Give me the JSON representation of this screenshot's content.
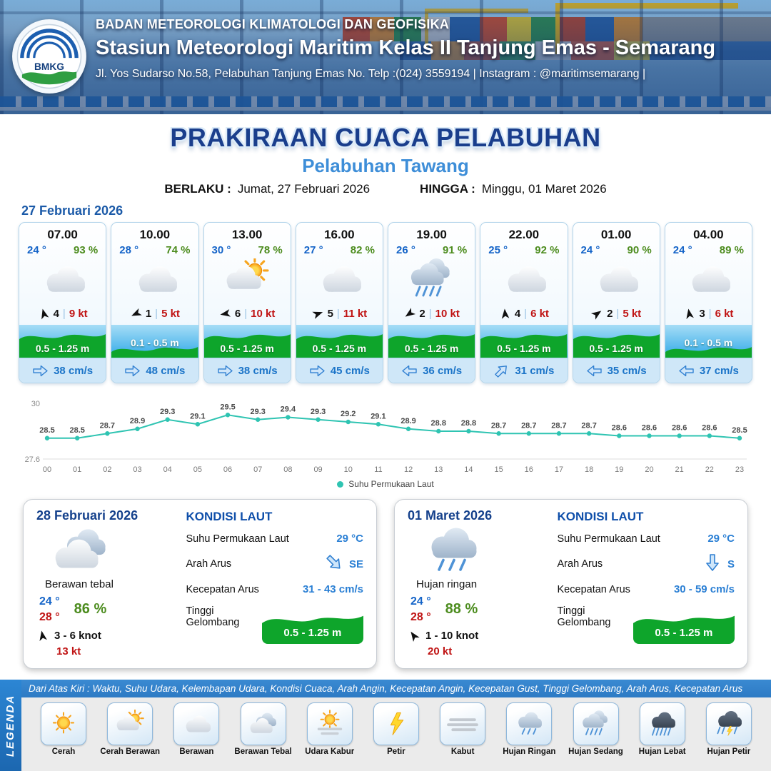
{
  "ui": {
    "divider": "|"
  },
  "header": {
    "logo_text": "BMKG",
    "org": "BADAN METEOROLOGI KLIMATOLOGI DAN GEOFISIKA",
    "station": "Stasiun Meteorologi Maritim Kelas II Tanjung Emas - Semarang",
    "address": "Jl. Yos Sudarso No.58, Pelabuhan Tanjung Emas No. Telp :(024) 3559194 | Instagram : @maritimsemarang |"
  },
  "title": {
    "main": "PRAKIRAAN CUACA PELABUHAN",
    "sub": "Pelabuhan Tawang",
    "valid_label": "BERLAKU :",
    "valid_value": "Jumat, 27 Februari 2026",
    "until_label": "HINGGA :",
    "until_value": "Minggu, 01 Maret 2026",
    "date_label": "27 Februari 2026"
  },
  "forecast_cards": [
    {
      "time": "07.00",
      "temp": "24 °",
      "rh": "93 %",
      "icon": "berawan",
      "wind_deg": -15,
      "wind_force": "4",
      "wind_speed": "9 kt",
      "wave": "0.5 - 1.25 m",
      "wave_level": "high",
      "cur_deg": 0,
      "current": "38 cm/s"
    },
    {
      "time": "10.00",
      "temp": "28 °",
      "rh": "74 %",
      "icon": "berawan",
      "wind_deg": -115,
      "wind_force": "1",
      "wind_speed": "5 kt",
      "wave": "0.1 - 0.5 m",
      "wave_level": "low",
      "cur_deg": 0,
      "current": "48 cm/s"
    },
    {
      "time": "13.00",
      "temp": "30 °",
      "rh": "78 %",
      "icon": "cerah-berawan",
      "wind_deg": -100,
      "wind_force": "6",
      "wind_speed": "10 kt",
      "wave": "0.5 - 1.25 m",
      "wave_level": "high",
      "cur_deg": 0,
      "current": "38 cm/s"
    },
    {
      "time": "16.00",
      "temp": "27 °",
      "rh": "82 %",
      "icon": "berawan",
      "wind_deg": 70,
      "wind_force": "5",
      "wind_speed": "11 kt",
      "wave": "0.5 - 1.25 m",
      "wave_level": "high",
      "cur_deg": 0,
      "current": "45 cm/s"
    },
    {
      "time": "19.00",
      "temp": "26 °",
      "rh": "91 %",
      "icon": "hujan-sedang",
      "wind_deg": -125,
      "wind_force": "2",
      "wind_speed": "10 kt",
      "wave": "0.5 - 1.25 m",
      "wave_level": "high",
      "cur_deg": 180,
      "current": "36 cm/s"
    },
    {
      "time": "22.00",
      "temp": "25 °",
      "rh": "92 %",
      "icon": "berawan",
      "wind_deg": -5,
      "wind_force": "4",
      "wind_speed": "6 kt",
      "wave": "0.5 - 1.25 m",
      "wave_level": "high",
      "cur_deg": -45,
      "current": "31 cm/s"
    },
    {
      "time": "01.00",
      "temp": "24 °",
      "rh": "90 %",
      "icon": "berawan",
      "wind_deg": 55,
      "wind_force": "2",
      "wind_speed": "5 kt",
      "wave": "0.5 - 1.25 m",
      "wave_level": "high",
      "cur_deg": 180,
      "current": "35 cm/s"
    },
    {
      "time": "04.00",
      "temp": "24 °",
      "rh": "89 %",
      "icon": "berawan",
      "wind_deg": -10,
      "wind_force": "3",
      "wind_speed": "6 kt",
      "wave": "0.1 - 0.5 m",
      "wave_level": "low",
      "cur_deg": 180,
      "current": "37 cm/s"
    }
  ],
  "chart_data": {
    "type": "line",
    "series_label": "Suhu Permukaan Laut",
    "x": [
      "00",
      "01",
      "02",
      "03",
      "04",
      "05",
      "06",
      "07",
      "08",
      "09",
      "10",
      "11",
      "12",
      "13",
      "14",
      "15",
      "16",
      "17",
      "18",
      "19",
      "20",
      "21",
      "22",
      "23"
    ],
    "values": [
      28.5,
      28.5,
      28.7,
      28.9,
      29.3,
      29.1,
      29.5,
      29.3,
      29.4,
      29.3,
      29.2,
      29.1,
      28.9,
      28.8,
      28.8,
      28.7,
      28.7,
      28.7,
      28.7,
      28.6,
      28.6,
      28.6,
      28.6,
      28.5
    ],
    "ylim": [
      27.6,
      30
    ],
    "line_color": "#2fc4b2",
    "legend_position": "bottom",
    "grid": false
  },
  "outlook": [
    {
      "date": "28 Februari 2026",
      "icon": "berawan-tebal",
      "condition": "Berawan tebal",
      "temp_min": "24 °",
      "temp_max": "28 °",
      "rh": "86 %",
      "wind_deg": -10,
      "wind_range": "3  - 6 knot",
      "gust": "13 kt",
      "sea_title": "KONDISI LAUT",
      "sst_label": "Suhu Permukaan Laut",
      "sst": "29 °C",
      "dir_label": "Arah Arus",
      "dir": "SE",
      "dir_deg": 45,
      "speed_label": "Kecepatan Arus",
      "speed": "31 - 43 cm/s",
      "wave_label": "Tinggi Gelombang",
      "wave": "0.5 - 1.25 m"
    },
    {
      "date": "01 Maret 2026",
      "icon": "hujan-ringan",
      "condition": "Hujan ringan",
      "temp_min": "24 °",
      "temp_max": "28 °",
      "rh": "88 %",
      "wind_deg": -35,
      "wind_range": "1  - 10 knot",
      "gust": "20 kt",
      "sea_title": "KONDISI LAUT",
      "sst_label": "Suhu Permukaan Laut",
      "sst": "29 °C",
      "dir_label": "Arah Arus",
      "dir": "S",
      "dir_deg": 90,
      "speed_label": "Kecepatan Arus",
      "speed": "30 - 59 cm/s",
      "wave_label": "Tinggi Gelombang",
      "wave": "0.5 - 1.25 m"
    }
  ],
  "legend": {
    "title": "LEGENDA",
    "description": "Dari Atas Kiri : Waktu, Suhu Udara, Kelembapan Udara, Kondisi Cuaca, Arah Angin, Kecepatan Angin, Kecepatan Gust, Tinggi Gelombang, Arah Arus, Kecepatan Arus",
    "items": [
      {
        "icon": "cerah",
        "label": "Cerah"
      },
      {
        "icon": "cerah-berawan",
        "label": "Cerah Berawan"
      },
      {
        "icon": "berawan",
        "label": "Berawan"
      },
      {
        "icon": "berawan-tebal",
        "label": "Berawan Tebal"
      },
      {
        "icon": "udara-kabur",
        "label": "Udara Kabur"
      },
      {
        "icon": "petir",
        "label": "Petir"
      },
      {
        "icon": "kabut",
        "label": "Kabut"
      },
      {
        "icon": "hujan-ringan",
        "label": "Hujan Ringan"
      },
      {
        "icon": "hujan-sedang",
        "label": "Hujan Sedang"
      },
      {
        "icon": "hujan-lebat",
        "label": "Hujan Lebat"
      },
      {
        "icon": "hujan-petir",
        "label": "Hujan Petir"
      }
    ]
  }
}
